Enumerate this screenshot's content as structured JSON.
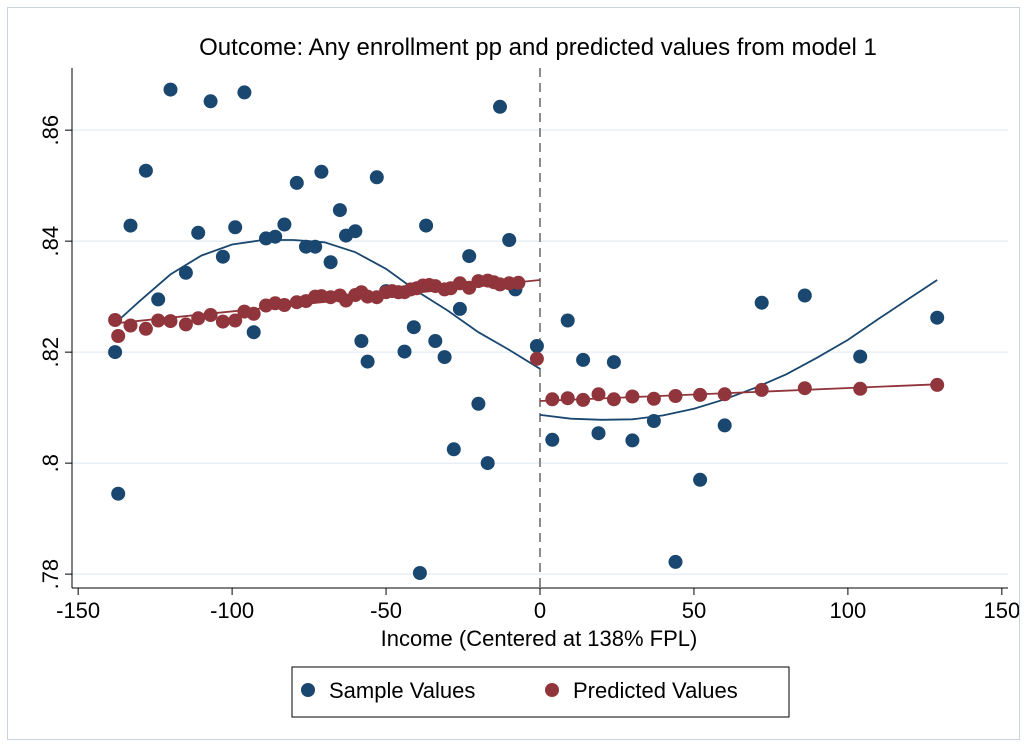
{
  "chart_data": {
    "type": "scatter",
    "title": "Outcome: Any enrollment pp and predicted values from model 1",
    "xlabel": "Income (Centered at 138% FPL)",
    "ylabel": "",
    "xlim": [
      -152,
      152
    ],
    "ylim": [
      0.7775,
      0.8712
    ],
    "x_ticks": [
      -150,
      -100,
      -50,
      0,
      50,
      100,
      150
    ],
    "x_tick_labels": [
      "-150",
      "-100",
      "-50",
      "0",
      "50",
      "100",
      "150"
    ],
    "y_ticks": [
      0.78,
      0.8,
      0.82,
      0.84,
      0.86
    ],
    "y_tick_labels": [
      ".78",
      ".8",
      ".82",
      ".84",
      ".86"
    ],
    "grid": true,
    "cutoff_x": 0,
    "legend_position": "bottom",
    "colors": {
      "sample": "#1a476f",
      "predicted": "#90353b",
      "cutoff": "#8c8c8c",
      "grid": "#e4ecf2"
    },
    "series": [
      {
        "name": "Sample Values",
        "points": [
          [
            -138,
            0.82
          ],
          [
            -137,
            0.7945
          ],
          [
            -133,
            0.8428
          ],
          [
            -128,
            0.8527
          ],
          [
            -124,
            0.8295
          ],
          [
            -120,
            0.8673
          ],
          [
            -115,
            0.8343
          ],
          [
            -111,
            0.8415
          ],
          [
            -107,
            0.8652
          ],
          [
            -103,
            0.8372
          ],
          [
            -99,
            0.8425
          ],
          [
            -96,
            0.8668
          ],
          [
            -93,
            0.8236
          ],
          [
            -89,
            0.8405
          ],
          [
            -86,
            0.8408
          ],
          [
            -83,
            0.843
          ],
          [
            -79,
            0.8505
          ],
          [
            -76,
            0.839
          ],
          [
            -73,
            0.839
          ],
          [
            -71,
            0.8525
          ],
          [
            -68,
            0.8362
          ],
          [
            -65,
            0.8456
          ],
          [
            -63,
            0.841
          ],
          [
            -60,
            0.8418
          ],
          [
            -58,
            0.822
          ],
          [
            -56,
            0.8183
          ],
          [
            -53,
            0.8515
          ],
          [
            -50,
            0.831
          ],
          [
            -46,
            0.8308
          ],
          [
            -44,
            0.8201
          ],
          [
            -41,
            0.8245
          ],
          [
            -39,
            0.7802
          ],
          [
            -37,
            0.8428
          ],
          [
            -34,
            0.822
          ],
          [
            -31,
            0.8191
          ],
          [
            -28,
            0.8025
          ],
          [
            -26,
            0.8278
          ],
          [
            -23,
            0.8373
          ],
          [
            -20,
            0.8107
          ],
          [
            -17,
            0.8
          ],
          [
            -13,
            0.8642
          ],
          [
            -10,
            0.8402
          ],
          [
            -8,
            0.8313
          ],
          [
            -1,
            0.8211
          ],
          [
            4,
            0.8042
          ],
          [
            9,
            0.8257
          ],
          [
            14,
            0.8186
          ],
          [
            19,
            0.8054
          ],
          [
            24,
            0.8182
          ],
          [
            30,
            0.8041
          ],
          [
            37,
            0.8076
          ],
          [
            44,
            0.7822
          ],
          [
            52,
            0.797
          ],
          [
            60,
            0.8068
          ],
          [
            72,
            0.8289
          ],
          [
            86,
            0.8302
          ],
          [
            104,
            0.8192
          ],
          [
            129,
            0.8262
          ]
        ]
      },
      {
        "name": "Predicted Values",
        "points": [
          [
            -138,
            0.8258
          ],
          [
            -137,
            0.8229
          ],
          [
            -133,
            0.8248
          ],
          [
            -128,
            0.8242
          ],
          [
            -124,
            0.8257
          ],
          [
            -120,
            0.8256
          ],
          [
            -115,
            0.825
          ],
          [
            -111,
            0.8261
          ],
          [
            -107,
            0.8267
          ],
          [
            -103,
            0.8255
          ],
          [
            -99,
            0.8257
          ],
          [
            -96,
            0.8273
          ],
          [
            -93,
            0.8269
          ],
          [
            -89,
            0.8284
          ],
          [
            -86,
            0.8288
          ],
          [
            -83,
            0.8285
          ],
          [
            -79,
            0.829
          ],
          [
            -76,
            0.8292
          ],
          [
            -73,
            0.83
          ],
          [
            -71,
            0.8301
          ],
          [
            -68,
            0.8299
          ],
          [
            -65,
            0.8302
          ],
          [
            -63,
            0.8293
          ],
          [
            -60,
            0.8303
          ],
          [
            -58,
            0.8308
          ],
          [
            -56,
            0.83
          ],
          [
            -53,
            0.8299
          ],
          [
            -50,
            0.8308
          ],
          [
            -48,
            0.831
          ],
          [
            -46,
            0.8308
          ],
          [
            -44,
            0.8308
          ],
          [
            -42,
            0.8313
          ],
          [
            -40,
            0.8315
          ],
          [
            -38,
            0.832
          ],
          [
            -36,
            0.8321
          ],
          [
            -34,
            0.8319
          ],
          [
            -31,
            0.8313
          ],
          [
            -29,
            0.8315
          ],
          [
            -26,
            0.8324
          ],
          [
            -23,
            0.8316
          ],
          [
            -20,
            0.8328
          ],
          [
            -17,
            0.8329
          ],
          [
            -15,
            0.8326
          ],
          [
            -13,
            0.8322
          ],
          [
            -10,
            0.8324
          ],
          [
            -7,
            0.8325
          ],
          [
            -1,
            0.8188
          ],
          [
            4,
            0.8115
          ],
          [
            9,
            0.8117
          ],
          [
            14,
            0.8114
          ],
          [
            19,
            0.8124
          ],
          [
            24,
            0.8115
          ],
          [
            30,
            0.812
          ],
          [
            37,
            0.8116
          ],
          [
            44,
            0.8121
          ],
          [
            52,
            0.8123
          ],
          [
            60,
            0.8124
          ],
          [
            72,
            0.8132
          ],
          [
            86,
            0.8135
          ],
          [
            104,
            0.8134
          ],
          [
            129,
            0.8141
          ]
        ]
      }
    ],
    "fit_lines": [
      {
        "series": "Sample Values",
        "segment": "left",
        "points": [
          [
            -138,
            0.8252
          ],
          [
            -130,
            0.8292
          ],
          [
            -120,
            0.834
          ],
          [
            -110,
            0.8374
          ],
          [
            -100,
            0.8394
          ],
          [
            -90,
            0.8402
          ],
          [
            -80,
            0.8402
          ],
          [
            -70,
            0.8398
          ],
          [
            -60,
            0.838
          ],
          [
            -50,
            0.835
          ],
          [
            -40,
            0.831
          ],
          [
            -30,
            0.8275
          ],
          [
            -20,
            0.8236
          ],
          [
            -10,
            0.8204
          ],
          [
            0,
            0.817
          ]
        ]
      },
      {
        "series": "Predicted Values",
        "segment": "left",
        "points": [
          [
            -138,
            0.8252
          ],
          [
            0,
            0.833
          ]
        ]
      },
      {
        "series": "Sample Values",
        "segment": "right",
        "points": [
          [
            0,
            0.8087
          ],
          [
            10,
            0.808
          ],
          [
            20,
            0.8078
          ],
          [
            30,
            0.8079
          ],
          [
            40,
            0.8086
          ],
          [
            50,
            0.8098
          ],
          [
            60,
            0.8115
          ],
          [
            70,
            0.8136
          ],
          [
            80,
            0.816
          ],
          [
            90,
            0.819
          ],
          [
            100,
            0.8222
          ],
          [
            110,
            0.826
          ],
          [
            120,
            0.8297
          ],
          [
            129,
            0.833
          ]
        ]
      },
      {
        "series": "Predicted Values",
        "segment": "right",
        "points": [
          [
            0,
            0.8112
          ],
          [
            129,
            0.8142
          ]
        ]
      }
    ]
  }
}
